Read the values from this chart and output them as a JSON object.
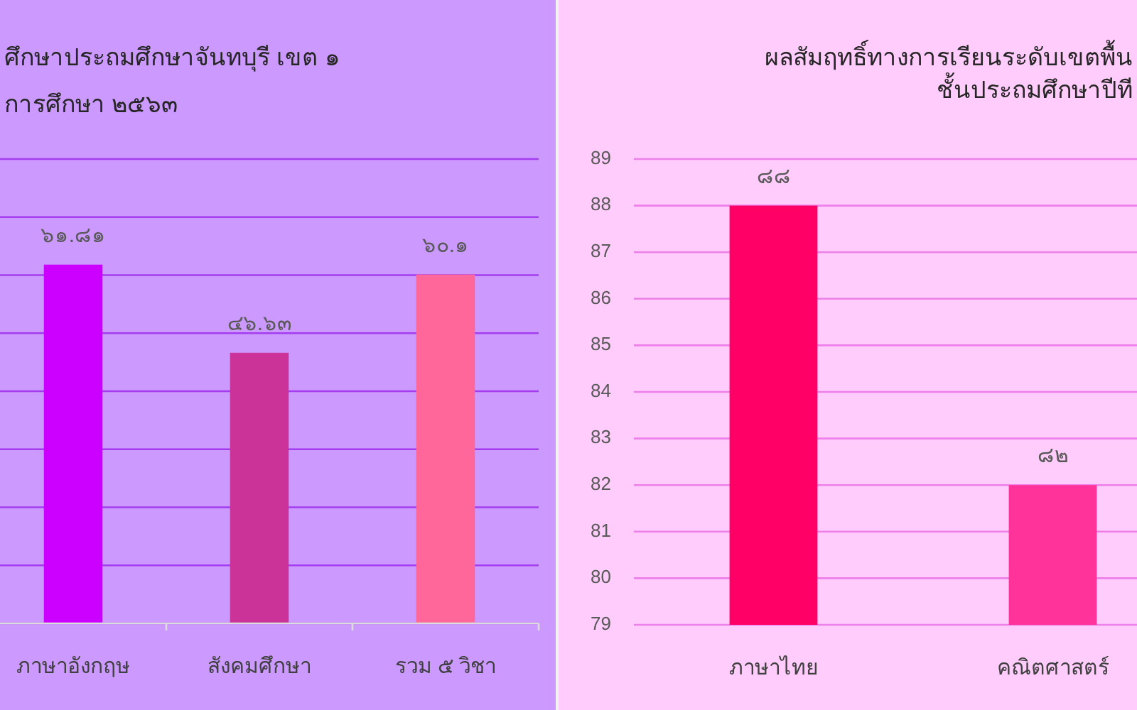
{
  "chart_data": [
    {
      "type": "bar",
      "title": "ศึกษาประถมศึกษาจันทบุรี เขต ๑\nการศึกษา ๒๕๖๓",
      "categories": [
        "ภาษาอังกฤษ",
        "สังคมศึกษา",
        "รวม ๕ วิชา"
      ],
      "values": [
        61.81,
        46.63,
        60.1
      ],
      "colors": [
        "#cc00ff",
        "#cc3399",
        "#ff6699"
      ],
      "value_labels": [
        "๖๑.๘๑",
        "๔๖.๖๓",
        "๖๐.๑"
      ],
      "ylim": [
        0,
        80
      ],
      "yticks": [
        0,
        10,
        20,
        30,
        40,
        50,
        60,
        70,
        80
      ],
      "grid": "y",
      "tick_labels": "x"
    },
    {
      "type": "bar",
      "title": "ผลสัมฤทธิ์ทางการเรียนระดับเขตพื้น\nชั้นประถมศึกษาปีที",
      "categories": [
        "ภาษาไทย",
        "คณิตศาสตร์"
      ],
      "values": [
        88,
        82
      ],
      "colors": [
        "#ff0066",
        "#ff3399"
      ],
      "value_labels": [
        "๘๘",
        "๘๒"
      ],
      "ylim": [
        79,
        89
      ],
      "yticks": [
        79,
        80,
        81,
        82,
        83,
        84,
        85,
        86,
        87,
        88,
        89
      ],
      "grid": "y"
    }
  ]
}
